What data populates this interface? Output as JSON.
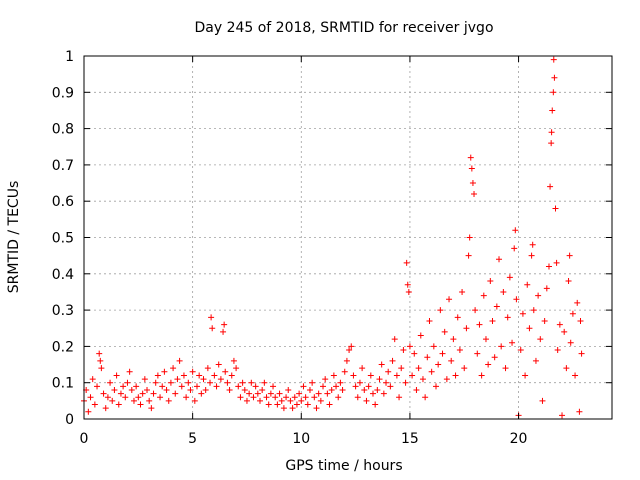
{
  "chart_data": {
    "type": "scatter",
    "title": "Day 245 of 2018, SRMTID for receiver jvgo",
    "xlabel": "GPS time / hours",
    "ylabel": "SRMTID / TECUs",
    "xlim": [
      0,
      24.3
    ],
    "ylim": [
      0,
      1
    ],
    "xticks": [
      0,
      5,
      10,
      15,
      20
    ],
    "xtick_labels": [
      "0",
      "5",
      "10",
      "15",
      "20"
    ],
    "yticks": [
      0,
      0.1,
      0.2,
      0.3,
      0.4,
      0.5,
      0.6,
      0.7,
      0.8,
      0.9,
      1
    ],
    "ytick_labels": [
      "0",
      "0.1",
      "0.2",
      "0.3",
      "0.4",
      "0.5",
      "0.6",
      "0.7",
      "0.8",
      "0.9",
      "1"
    ],
    "grid": true,
    "marker": "+",
    "color": "#ff0000",
    "series": [
      {
        "name": "SRMTID",
        "points": [
          [
            0.0,
            0.05
          ],
          [
            0.1,
            0.08
          ],
          [
            0.2,
            0.02
          ],
          [
            0.3,
            0.06
          ],
          [
            0.4,
            0.11
          ],
          [
            0.5,
            0.04
          ],
          [
            0.6,
            0.09
          ],
          [
            0.7,
            0.18
          ],
          [
            0.75,
            0.16
          ],
          [
            0.8,
            0.14
          ],
          [
            0.9,
            0.07
          ],
          [
            1.0,
            0.03
          ],
          [
            1.1,
            0.06
          ],
          [
            1.2,
            0.1
          ],
          [
            1.3,
            0.05
          ],
          [
            1.4,
            0.08
          ],
          [
            1.5,
            0.12
          ],
          [
            1.6,
            0.04
          ],
          [
            1.7,
            0.07
          ],
          [
            1.8,
            0.09
          ],
          [
            1.9,
            0.06
          ],
          [
            2.0,
            0.1
          ],
          [
            2.1,
            0.13
          ],
          [
            2.2,
            0.08
          ],
          [
            2.3,
            0.05
          ],
          [
            2.4,
            0.09
          ],
          [
            2.5,
            0.06
          ],
          [
            2.6,
            0.04
          ],
          [
            2.7,
            0.07
          ],
          [
            2.8,
            0.11
          ],
          [
            2.9,
            0.08
          ],
          [
            3.0,
            0.05
          ],
          [
            3.1,
            0.03
          ],
          [
            3.2,
            0.07
          ],
          [
            3.3,
            0.1
          ],
          [
            3.4,
            0.12
          ],
          [
            3.5,
            0.06
          ],
          [
            3.6,
            0.09
          ],
          [
            3.7,
            0.13
          ],
          [
            3.8,
            0.08
          ],
          [
            3.9,
            0.05
          ],
          [
            4.0,
            0.1
          ],
          [
            4.1,
            0.14
          ],
          [
            4.2,
            0.07
          ],
          [
            4.3,
            0.11
          ],
          [
            4.4,
            0.16
          ],
          [
            4.5,
            0.09
          ],
          [
            4.6,
            0.12
          ],
          [
            4.7,
            0.06
          ],
          [
            4.8,
            0.1
          ],
          [
            4.9,
            0.08
          ],
          [
            5.0,
            0.13
          ],
          [
            5.1,
            0.05
          ],
          [
            5.2,
            0.09
          ],
          [
            5.3,
            0.12
          ],
          [
            5.4,
            0.07
          ],
          [
            5.5,
            0.11
          ],
          [
            5.6,
            0.08
          ],
          [
            5.7,
            0.14
          ],
          [
            5.8,
            0.1
          ],
          [
            5.85,
            0.28
          ],
          [
            5.9,
            0.25
          ],
          [
            6.0,
            0.12
          ],
          [
            6.1,
            0.09
          ],
          [
            6.2,
            0.15
          ],
          [
            6.3,
            0.11
          ],
          [
            6.4,
            0.24
          ],
          [
            6.45,
            0.26
          ],
          [
            6.5,
            0.13
          ],
          [
            6.6,
            0.1
          ],
          [
            6.7,
            0.08
          ],
          [
            6.8,
            0.12
          ],
          [
            6.9,
            0.16
          ],
          [
            7.0,
            0.14
          ],
          [
            7.1,
            0.09
          ],
          [
            7.2,
            0.06
          ],
          [
            7.3,
            0.1
          ],
          [
            7.4,
            0.08
          ],
          [
            7.5,
            0.05
          ],
          [
            7.6,
            0.07
          ],
          [
            7.7,
            0.1
          ],
          [
            7.8,
            0.06
          ],
          [
            7.9,
            0.09
          ],
          [
            8.0,
            0.07
          ],
          [
            8.1,
            0.05
          ],
          [
            8.2,
            0.08
          ],
          [
            8.3,
            0.1
          ],
          [
            8.4,
            0.06
          ],
          [
            8.5,
            0.04
          ],
          [
            8.6,
            0.07
          ],
          [
            8.7,
            0.09
          ],
          [
            8.8,
            0.06
          ],
          [
            8.9,
            0.04
          ],
          [
            9.0,
            0.07
          ],
          [
            9.1,
            0.05
          ],
          [
            9.2,
            0.03
          ],
          [
            9.3,
            0.06
          ],
          [
            9.4,
            0.08
          ],
          [
            9.5,
            0.05
          ],
          [
            9.6,
            0.03
          ],
          [
            9.7,
            0.06
          ],
          [
            9.8,
            0.04
          ],
          [
            9.9,
            0.07
          ],
          [
            10.0,
            0.05
          ],
          [
            10.1,
            0.09
          ],
          [
            10.2,
            0.06
          ],
          [
            10.3,
            0.04
          ],
          [
            10.4,
            0.08
          ],
          [
            10.5,
            0.1
          ],
          [
            10.6,
            0.06
          ],
          [
            10.7,
            0.03
          ],
          [
            10.8,
            0.07
          ],
          [
            10.9,
            0.05
          ],
          [
            11.0,
            0.09
          ],
          [
            11.1,
            0.11
          ],
          [
            11.2,
            0.07
          ],
          [
            11.3,
            0.04
          ],
          [
            11.4,
            0.08
          ],
          [
            11.5,
            0.12
          ],
          [
            11.6,
            0.09
          ],
          [
            11.7,
            0.06
          ],
          [
            11.8,
            0.1
          ],
          [
            11.9,
            0.08
          ],
          [
            12.0,
            0.13
          ],
          [
            12.1,
            0.16
          ],
          [
            12.2,
            0.19
          ],
          [
            12.3,
            0.2
          ],
          [
            12.4,
            0.12
          ],
          [
            12.5,
            0.09
          ],
          [
            12.6,
            0.06
          ],
          [
            12.7,
            0.1
          ],
          [
            12.8,
            0.14
          ],
          [
            12.9,
            0.08
          ],
          [
            13.0,
            0.05
          ],
          [
            13.1,
            0.09
          ],
          [
            13.2,
            0.12
          ],
          [
            13.3,
            0.07
          ],
          [
            13.4,
            0.04
          ],
          [
            13.5,
            0.08
          ],
          [
            13.6,
            0.11
          ],
          [
            13.7,
            0.15
          ],
          [
            13.8,
            0.07
          ],
          [
            13.9,
            0.1
          ],
          [
            14.0,
            0.13
          ],
          [
            14.1,
            0.09
          ],
          [
            14.2,
            0.16
          ],
          [
            14.3,
            0.22
          ],
          [
            14.4,
            0.12
          ],
          [
            14.5,
            0.06
          ],
          [
            14.6,
            0.14
          ],
          [
            14.7,
            0.19
          ],
          [
            14.8,
            0.1
          ],
          [
            14.85,
            0.43
          ],
          [
            14.9,
            0.37
          ],
          [
            14.95,
            0.35
          ],
          [
            15.0,
            0.2
          ],
          [
            15.1,
            0.12
          ],
          [
            15.2,
            0.18
          ],
          [
            15.3,
            0.08
          ],
          [
            15.4,
            0.14
          ],
          [
            15.5,
            0.23
          ],
          [
            15.6,
            0.11
          ],
          [
            15.7,
            0.06
          ],
          [
            15.8,
            0.17
          ],
          [
            15.9,
            0.27
          ],
          [
            16.0,
            0.13
          ],
          [
            16.1,
            0.2
          ],
          [
            16.2,
            0.09
          ],
          [
            16.3,
            0.15
          ],
          [
            16.4,
            0.3
          ],
          [
            16.5,
            0.18
          ],
          [
            16.6,
            0.24
          ],
          [
            16.7,
            0.11
          ],
          [
            16.8,
            0.33
          ],
          [
            16.9,
            0.16
          ],
          [
            17.0,
            0.22
          ],
          [
            17.1,
            0.12
          ],
          [
            17.2,
            0.28
          ],
          [
            17.3,
            0.19
          ],
          [
            17.4,
            0.35
          ],
          [
            17.5,
            0.14
          ],
          [
            17.6,
            0.25
          ],
          [
            17.7,
            0.45
          ],
          [
            17.75,
            0.5
          ],
          [
            17.8,
            0.72
          ],
          [
            17.85,
            0.69
          ],
          [
            17.9,
            0.65
          ],
          [
            17.95,
            0.62
          ],
          [
            18.0,
            0.3
          ],
          [
            18.1,
            0.18
          ],
          [
            18.2,
            0.26
          ],
          [
            18.3,
            0.12
          ],
          [
            18.4,
            0.34
          ],
          [
            18.5,
            0.22
          ],
          [
            18.6,
            0.15
          ],
          [
            18.7,
            0.38
          ],
          [
            18.8,
            0.27
          ],
          [
            18.9,
            0.17
          ],
          [
            19.0,
            0.31
          ],
          [
            19.1,
            0.44
          ],
          [
            19.2,
            0.2
          ],
          [
            19.3,
            0.35
          ],
          [
            19.4,
            0.14
          ],
          [
            19.5,
            0.28
          ],
          [
            19.6,
            0.39
          ],
          [
            19.7,
            0.21
          ],
          [
            19.8,
            0.47
          ],
          [
            19.85,
            0.52
          ],
          [
            19.9,
            0.33
          ],
          [
            20.0,
            0.01
          ],
          [
            20.1,
            0.19
          ],
          [
            20.2,
            0.29
          ],
          [
            20.3,
            0.12
          ],
          [
            20.4,
            0.37
          ],
          [
            20.5,
            0.25
          ],
          [
            20.6,
            0.45
          ],
          [
            20.65,
            0.48
          ],
          [
            20.7,
            0.3
          ],
          [
            20.8,
            0.16
          ],
          [
            20.9,
            0.34
          ],
          [
            21.0,
            0.22
          ],
          [
            21.1,
            0.05
          ],
          [
            21.2,
            0.27
          ],
          [
            21.3,
            0.36
          ],
          [
            21.4,
            0.42
          ],
          [
            21.45,
            0.64
          ],
          [
            21.5,
            0.76
          ],
          [
            21.52,
            0.79
          ],
          [
            21.55,
            0.85
          ],
          [
            21.6,
            0.9
          ],
          [
            21.62,
            0.99
          ],
          [
            21.65,
            0.94
          ],
          [
            21.7,
            0.58
          ],
          [
            21.75,
            0.43
          ],
          [
            21.8,
            0.19
          ],
          [
            21.9,
            0.26
          ],
          [
            22.0,
            0.01
          ],
          [
            22.1,
            0.24
          ],
          [
            22.2,
            0.14
          ],
          [
            22.3,
            0.38
          ],
          [
            22.35,
            0.45
          ],
          [
            22.4,
            0.21
          ],
          [
            22.5,
            0.29
          ],
          [
            22.6,
            0.12
          ],
          [
            22.7,
            0.32
          ],
          [
            22.8,
            0.02
          ],
          [
            22.85,
            0.27
          ],
          [
            22.9,
            0.18
          ]
        ]
      }
    ]
  }
}
